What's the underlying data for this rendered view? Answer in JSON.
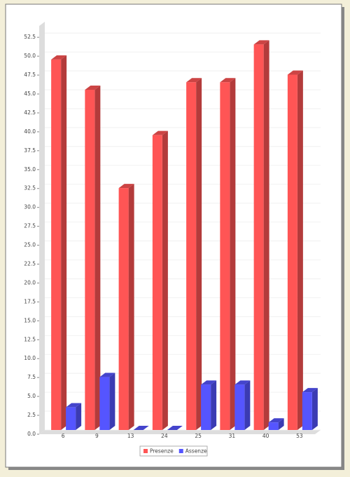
{
  "chart_data": {
    "type": "bar3d",
    "categories": [
      "6",
      "9",
      "13",
      "24",
      "25",
      "31",
      "40",
      "53"
    ],
    "series": [
      {
        "name": "Presenze",
        "color": "#ff5555",
        "values": [
          49,
          45,
          32,
          39,
          46,
          46,
          51,
          47
        ]
      },
      {
        "name": "Assenze",
        "color": "#5555ff",
        "values": [
          3,
          7,
          0,
          0,
          6,
          6,
          1,
          5
        ]
      }
    ],
    "ylim": [
      0,
      54
    ],
    "yticks": [
      {
        "value": 0,
        "label": "0.0"
      },
      2.5,
      {
        "value": 5,
        "label": "5.0"
      },
      7.5,
      {
        "value": 10,
        "label": "10.0"
      },
      12.5,
      {
        "value": 15,
        "label": "15.0"
      },
      17.5,
      {
        "value": 20,
        "label": "20.0"
      },
      22.5,
      {
        "value": 25,
        "label": "25.0"
      },
      27.5,
      {
        "value": 30,
        "label": "30.0"
      },
      32.5,
      {
        "value": 35,
        "label": "35.0"
      },
      37.5,
      {
        "value": 40,
        "label": "40.0"
      },
      42.5,
      {
        "value": 45,
        "label": "45.0"
      },
      47.5,
      {
        "value": 50,
        "label": "50.0"
      },
      52.5
    ],
    "grid": true,
    "legend": "bottom"
  }
}
